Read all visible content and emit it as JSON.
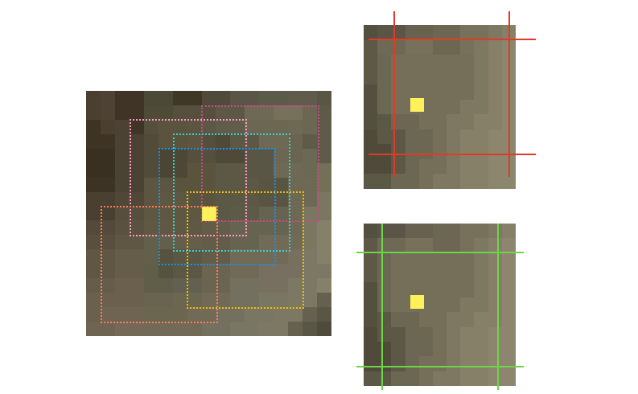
{
  "colors": {
    "background": "#ffffff",
    "marker": "#fff15a",
    "proposal_pink": "#ff9bc8",
    "proposal_magenta": "#c84a86",
    "proposal_cyan": "#39d1cc",
    "proposal_blue": "#1b8fe0",
    "proposal_yellow": "#f2c000",
    "proposal_salmon": "#ff7b5e",
    "crop_lines_red": "#e13a26",
    "crop_lines_green": "#6ed54a"
  },
  "main_panel": {
    "grid": [
      [
        "#4a3f31",
        "#4d4233",
        "#3f3426",
        "#3f3426",
        "#4c4a36",
        "#4c4a36",
        "#403826",
        "#403826",
        "#4f4a3a",
        "#4f4a3a",
        "#5a5546",
        "#5a5546",
        "#5c5a48",
        "#5c5a48",
        "#605b4a",
        "#605b4a",
        "#5a5645"
      ],
      [
        "#4a3f31",
        "#4d4233",
        "#3f3426",
        "#3f3426",
        "#4e4b37",
        "#4e4b37",
        "#55503e",
        "#55503e",
        "#574f3d",
        "#5c5846",
        "#5c5846",
        "#6e6954",
        "#6e6954",
        "#77705a",
        "#77705a",
        "#6c6752",
        "#5d5a47"
      ],
      [
        "#3e3424",
        "#4a3f31",
        "#4b4233",
        "#3f3426",
        "#55503e",
        "#5a543f",
        "#5a543f",
        "#5b5541",
        "#5c5846",
        "#625d4a",
        "#625d4a",
        "#6c6752",
        "#6c6752",
        "#6c6752",
        "#6e6954",
        "#6c6752",
        "#5f5b48"
      ],
      [
        "#3e3424",
        "#3e3424",
        "#4b4233",
        "#4b4233",
        "#514b39",
        "#5a543f",
        "#5a543f",
        "#5b5541",
        "#55503e",
        "#4f4a38",
        "#5c5846",
        "#5c5846",
        "#6e6954",
        "#6e6954",
        "#696550",
        "#5f5b48",
        "#5f5b48"
      ],
      [
        "#3a3022",
        "#3a3022",
        "#4b4233",
        "#4b4233",
        "#514b39",
        "#4a4535",
        "#4c4835",
        "#55503e",
        "#55503e",
        "#4f4a38",
        "#4f4a38",
        "#5a5645",
        "#5a5645",
        "#6c6752",
        "#696550",
        "#6b6853",
        "#5f5b48"
      ],
      [
        "#3a3022",
        "#3a3022",
        "#4a4233",
        "#4a4233",
        "#514b39",
        "#4a4535",
        "#4c4835",
        "#5a543f",
        "#5a543f",
        "#5c5846",
        "#5c5846",
        "#5a5645",
        "#5a5645",
        "#6e6954",
        "#6e6954",
        "#6b6853",
        "#727057"
      ],
      [
        "#3d3325",
        "#3d3325",
        "#4a4233",
        "#4a4233",
        "#5b5541",
        "#5b5541",
        "#5a543f",
        "#5a543f",
        "#5a543f",
        "#5c5846",
        "#5c5846",
        "#5c5846",
        "#595542",
        "#595542",
        "#6e6954",
        "#6e6954",
        "#727057"
      ],
      [
        "#4a4031",
        "#4a4031",
        "#504737",
        "#504737",
        "#5b5541",
        "#5e5843",
        "#5e5843",
        "#5a543f",
        "#5a543f",
        "#5c5846",
        "#5c5846",
        "#5c5846",
        "#595542",
        "#595542",
        "#6e6954",
        "#6e6954",
        "#7a7660"
      ],
      [
        "#4a4031",
        "#4a4031",
        "#574e3d",
        "#574e3d",
        "#5e5843",
        "#5e5843",
        "#5e5843",
        "#5e5843",
        "#5c5846",
        "#5c5846",
        "#5e5a48",
        "#5e5a48",
        "#676351",
        "#676351",
        "#6e6954",
        "#7a7660",
        "#7a7660"
      ],
      [
        "#54493a",
        "#54493a",
        "#5a5141",
        "#5a5141",
        "#5f5944",
        "#5f5944",
        "#5f5944",
        "#5f5944",
        "#625c49",
        "#625c49",
        "#676351",
        "#676351",
        "#676351",
        "#676351",
        "#6e6954",
        "#7a7660",
        "#858169"
      ],
      [
        "#5a4f3e",
        "#5a4f3e",
        "#5f5644",
        "#5f5644",
        "#62604a",
        "#62604a",
        "#645e4a",
        "#645e4a",
        "#625c49",
        "#625c49",
        "#676351",
        "#676351",
        "#706a56",
        "#706a56",
        "#706a56",
        "#7a7660",
        "#858169"
      ],
      [
        "#5f5644",
        "#5f5644",
        "#655c49",
        "#655c49",
        "#62604a",
        "#55533f",
        "#5a5745",
        "#5a5745",
        "#625c49",
        "#625c49",
        "#706a56",
        "#706a56",
        "#706a56",
        "#706a56",
        "#777060",
        "#7c7864",
        "#858169"
      ],
      [
        "#5f5644",
        "#5f5644",
        "#655c49",
        "#655c49",
        "#605d49",
        "#55533f",
        "#5a5745",
        "#5a5745",
        "#6a6450",
        "#6a6450",
        "#706a56",
        "#706a56",
        "#777060",
        "#777060",
        "#777060",
        "#7c7864",
        "#7c7864"
      ],
      [
        "#655c49",
        "#655c49",
        "#6a604d",
        "#6a604d",
        "#605d49",
        "#605d49",
        "#626050",
        "#626050",
        "#6a6450",
        "#6a6450",
        "#747060",
        "#747060",
        "#777060",
        "#777060",
        "#7c7864",
        "#7c7864",
        "#858169"
      ],
      [
        "#6a604d",
        "#6a604d",
        "#6a604d",
        "#6a604d",
        "#68644f",
        "#68644f",
        "#6a6650",
        "#6a6650",
        "#706a56",
        "#706a56",
        "#747060",
        "#747060",
        "#7a7664",
        "#7a7664",
        "#7c7864",
        "#7c7864",
        "#66614f"
      ],
      [
        "#6a604d",
        "#6e6451",
        "#6e6451",
        "#6e6451",
        "#6a6650",
        "#6a6650",
        "#6a6650",
        "#706a56",
        "#706a56",
        "#747060",
        "#747060",
        "#7a7664",
        "#7a7664",
        "#7c7864",
        "#7c7864",
        "#66614f",
        "#5a5645"
      ],
      [
        "#6e6451",
        "#6e6451",
        "#736956",
        "#736956",
        "#706a56",
        "#706a56",
        "#706a56",
        "#706a56",
        "#747060",
        "#747060",
        "#7a7664",
        "#7a7664",
        "#7c7864",
        "#7c7864",
        "#66614f",
        "#5a5645",
        "#4f4b3c"
      ]
    ],
    "marker_label": "anchor-marker"
  },
  "crop_red": {
    "grid": [
      [
        "#545040",
        "#5a5546",
        "#5a5546",
        "#66624f",
        "#66624f",
        "#6c6752",
        "#6c6752",
        "#77705a",
        "#77705a",
        "#7d7862",
        "#868069"
      ],
      [
        "#5e5846",
        "#6e6954",
        "#6e6954",
        "#77705a",
        "#77705a",
        "#6c6752",
        "#6c6752",
        "#77705a",
        "#7d7862",
        "#868069",
        "#8c866f"
      ],
      [
        "#5e5846",
        "#6c6752",
        "#756f5a",
        "#756f5a",
        "#756f5a",
        "#756f5a",
        "#756f5a",
        "#756f5a",
        "#7d7862",
        "#868069",
        "#8c866f"
      ],
      [
        "#5e5846",
        "#6c6752",
        "#756f5a",
        "#756f5a",
        "#756f5a",
        "#756f5a",
        "#756f5a",
        "#756f5a",
        "#7d7862",
        "#868069",
        "#8c866f"
      ],
      [
        "#545040",
        "#6c6752",
        "#756f5a",
        "#756f5a",
        "#756f5a",
        "#756f5a",
        "#756f5a",
        "#756f5a",
        "#7d7862",
        "#868069",
        "#8c866f"
      ],
      [
        "#545040",
        "#6c6752",
        "#756f5a",
        "#756f5a",
        "#756f5a",
        "#756f5a",
        "#756f5a",
        "#7d7862",
        "#7d7862",
        "#868069",
        "#8c866f"
      ],
      [
        "#545040",
        "#5c5846",
        "#6c6752",
        "#6c6752",
        "#756f5a",
        "#756f5a",
        "#7d7862",
        "#7d7862",
        "#868069",
        "#868069",
        "#8c866f"
      ],
      [
        "#4f4a3a",
        "#5c5846",
        "#5c5846",
        "#6c6752",
        "#6c6752",
        "#756f5a",
        "#7d7862",
        "#868069",
        "#868069",
        "#8c866f",
        "#8c866f"
      ],
      [
        "#4f4a3a",
        "#4f4a3a",
        "#5c5846",
        "#6c6752",
        "#6c6752",
        "#756f5a",
        "#7d7862",
        "#868069",
        "#868069",
        "#8c866f",
        "#8c866f"
      ],
      [
        "#4f4a3a",
        "#4f4a3a",
        "#5c5846",
        "#6c6752",
        "#756f5a",
        "#756f5a",
        "#7d7862",
        "#868069",
        "#868069",
        "#8c866f",
        "#8c866f"
      ],
      [
        "#5c5846",
        "#5c5846",
        "#6c6752",
        "#6c6752",
        "#756f5a",
        "#7d7862",
        "#7d7862",
        "#868069",
        "#868069",
        "#8c866f",
        "#8c866f"
      ]
    ]
  },
  "crop_green": {
    "grid": [
      [
        "#545040",
        "#5a5546",
        "#5a5546",
        "#66624f",
        "#66624f",
        "#6c6752",
        "#6c6752",
        "#77705a",
        "#77705a",
        "#7d7862",
        "#868069"
      ],
      [
        "#5e5846",
        "#6e6954",
        "#6e6954",
        "#77705a",
        "#77705a",
        "#6c6752",
        "#6c6752",
        "#77705a",
        "#7d7862",
        "#868069",
        "#8c866f"
      ],
      [
        "#5e5846",
        "#6c6752",
        "#756f5a",
        "#756f5a",
        "#756f5a",
        "#756f5a",
        "#756f5a",
        "#756f5a",
        "#7d7862",
        "#868069",
        "#8c866f"
      ],
      [
        "#5e5846",
        "#6c6752",
        "#756f5a",
        "#756f5a",
        "#756f5a",
        "#756f5a",
        "#756f5a",
        "#756f5a",
        "#7d7862",
        "#868069",
        "#8c866f"
      ],
      [
        "#545040",
        "#6c6752",
        "#756f5a",
        "#756f5a",
        "#756f5a",
        "#756f5a",
        "#756f5a",
        "#756f5a",
        "#7d7862",
        "#868069",
        "#8c866f"
      ],
      [
        "#545040",
        "#6c6752",
        "#756f5a",
        "#756f5a",
        "#756f5a",
        "#756f5a",
        "#756f5a",
        "#7d7862",
        "#7d7862",
        "#868069",
        "#8c866f"
      ],
      [
        "#545040",
        "#5c5846",
        "#6c6752",
        "#6c6752",
        "#756f5a",
        "#756f5a",
        "#7d7862",
        "#7d7862",
        "#868069",
        "#868069",
        "#8c866f"
      ],
      [
        "#4f4a3a",
        "#5c5846",
        "#5c5846",
        "#6c6752",
        "#6c6752",
        "#756f5a",
        "#7d7862",
        "#868069",
        "#868069",
        "#8c866f",
        "#8c866f"
      ],
      [
        "#4f4a3a",
        "#4f4a3a",
        "#5c5846",
        "#6c6752",
        "#6c6752",
        "#756f5a",
        "#7d7862",
        "#868069",
        "#868069",
        "#8c866f",
        "#8c866f"
      ],
      [
        "#4f4a3a",
        "#4f4a3a",
        "#5c5846",
        "#6c6752",
        "#756f5a",
        "#756f5a",
        "#7d7862",
        "#868069",
        "#868069",
        "#8c866f",
        "#8c866f"
      ],
      [
        "#5c5846",
        "#5c5846",
        "#6c6752",
        "#6c6752",
        "#756f5a",
        "#7d7862",
        "#7d7862",
        "#868069",
        "#868069",
        "#8c866f",
        "#8c866f"
      ]
    ]
  }
}
